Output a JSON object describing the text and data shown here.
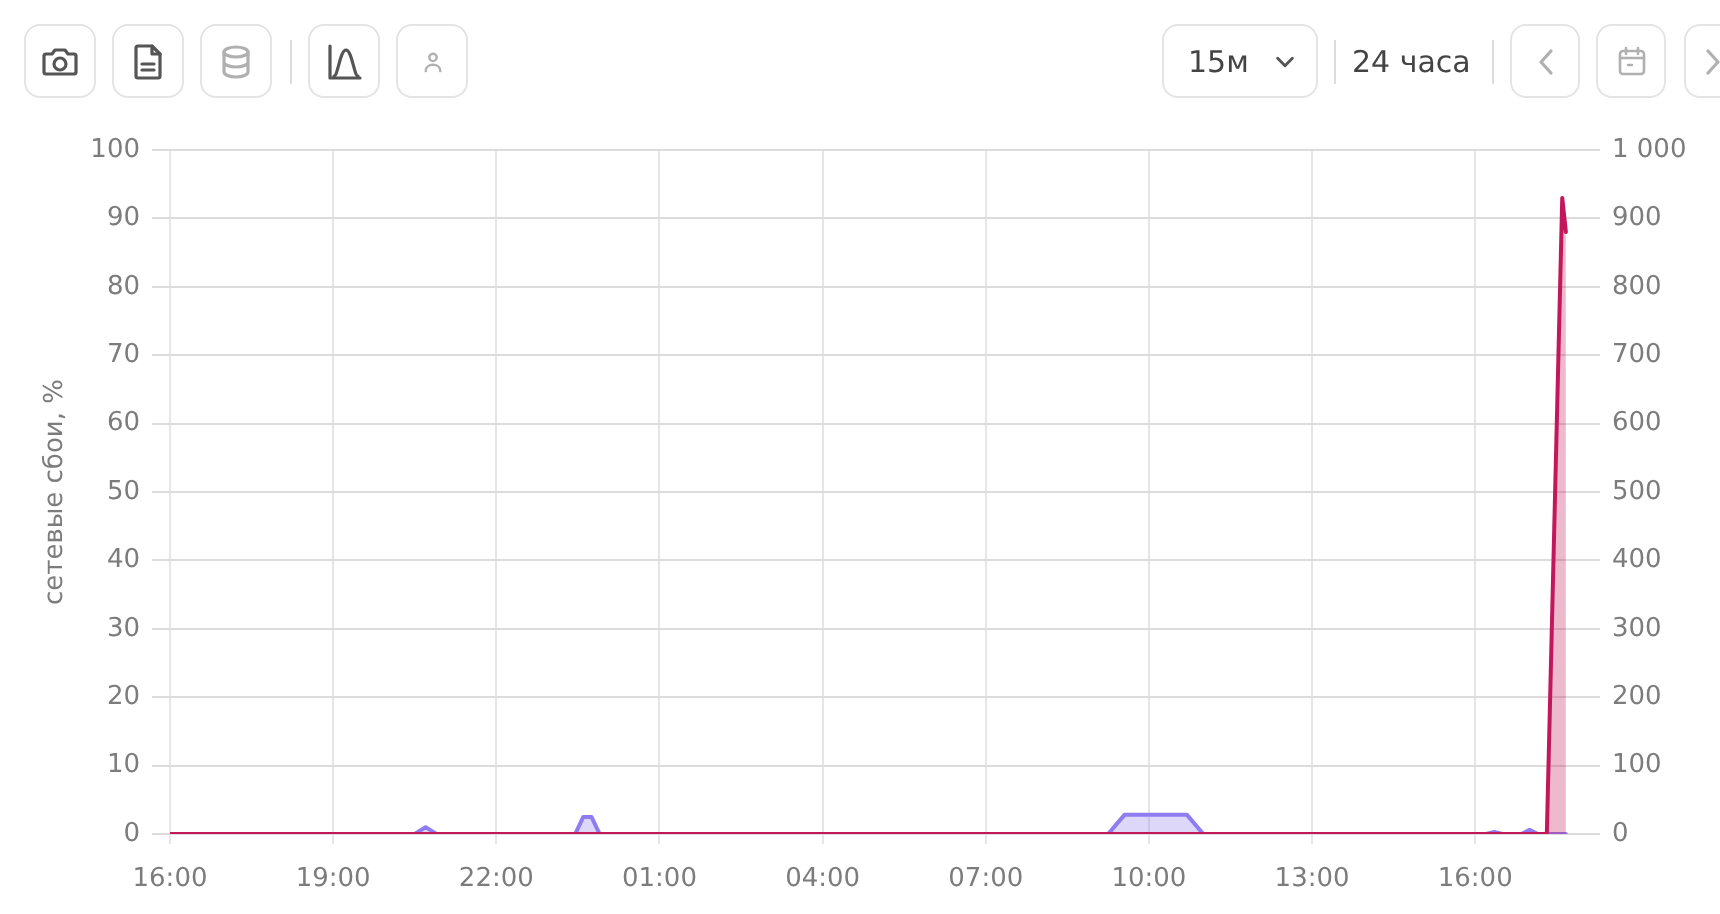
{
  "chart_data": {
    "type": "area",
    "ylabel": "сетевые сбои, %",
    "annotations": [
      "15м",
      "24 часа"
    ],
    "xlim": [
      "--01-01T16:00",
      "--01-02T18:00"
    ],
    "xticks": [
      {
        "value": "--01-01T16:00",
        "label": "16:00"
      },
      {
        "value": "--01-01T19:00",
        "label": "19:00"
      },
      {
        "value": "--01-01T22:00",
        "label": "22:00"
      },
      {
        "value": "--01-02T01:00",
        "label": "01:00"
      },
      {
        "value": "--01-02T04:00",
        "label": "04:00"
      },
      {
        "value": "--01-02T07:00",
        "label": "07:00"
      },
      {
        "value": "--01-02T10:00",
        "label": "10:00"
      },
      {
        "value": "--01-02T13:00",
        "label": "13:00"
      },
      {
        "value": "--01-02T16:00",
        "label": "16:00"
      }
    ],
    "ylim": [
      0,
      100
    ],
    "yticks": [
      0,
      10,
      20,
      30,
      40,
      50,
      60,
      70,
      80,
      90,
      100
    ],
    "y2lim": [
      0,
      1000
    ],
    "y2ticks": [
      0,
      100,
      200,
      300,
      400,
      500,
      600,
      700,
      800,
      900,
      {
        "value": 1000,
        "label": "1 000"
      }
    ],
    "grid": true,
    "series": [
      {
        "color": "#8e7cf0",
        "x": [
          "--01-01T16:00",
          "--01-01T20:30",
          "--01-01T20:42",
          "--01-01T20:54",
          "--01-01T23:27",
          "--01-01T23:36",
          "--01-01T23:45",
          "--01-01T23:54",
          "--01-02T09:15",
          "--01-02T09:33",
          "--01-02T10:42",
          "--01-02T11:00",
          "--01-02T16:12",
          "--01-02T16:21",
          "--01-02T16:30",
          "--01-02T16:51",
          "--01-02T17:00",
          "--01-02T17:09",
          "--01-02T17:40"
        ],
        "values": [
          0,
          0,
          1,
          0,
          0,
          2.5,
          2.5,
          0,
          0,
          2.8,
          2.8,
          0,
          0,
          0.3,
          0,
          0,
          0.6,
          0,
          0
        ]
      },
      {
        "color": "#c2185b",
        "axis": "y2",
        "x": [
          "--01-01T16:00",
          "--01-02T17:19",
          "--01-02T17:36",
          "--01-02T17:40"
        ],
        "values": [
          0,
          0,
          930,
          880
        ]
      }
    ]
  }
}
